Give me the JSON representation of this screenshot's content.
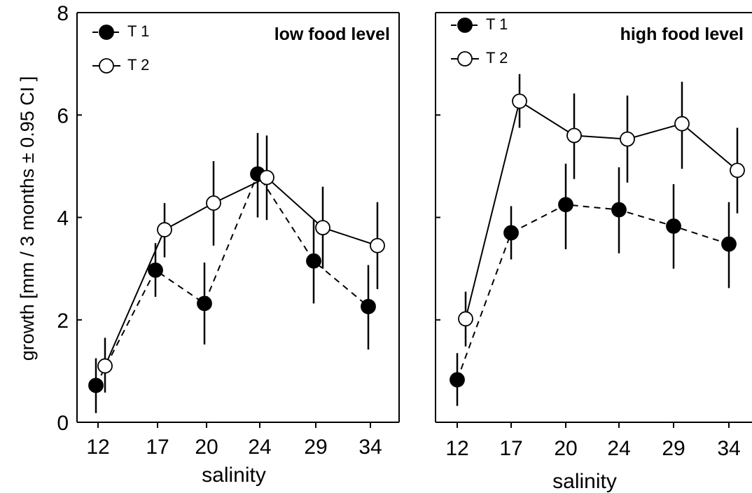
{
  "figure": {
    "ylabel": "growth [mm / 3 months ± 0.95 CI ]"
  },
  "chart_data": [
    {
      "type": "line",
      "title": "low food level",
      "xlabel": "salinity",
      "ylabel": "growth [mm / 3 months ± 0.95 CI ]",
      "categories": [
        "12",
        "17",
        "20",
        "24",
        "29",
        "34"
      ],
      "ylim": [
        0,
        8
      ],
      "yticks": [
        "0",
        "2",
        "4",
        "6",
        "8"
      ],
      "legend_position": "top-left",
      "series": [
        {
          "name": "T 1",
          "marker": "filled-circle",
          "line": "dashed",
          "values": [
            0.72,
            2.97,
            2.32,
            4.85,
            3.15,
            2.26
          ],
          "ci_low": [
            0.18,
            2.45,
            1.52,
            4.0,
            2.32,
            1.42
          ],
          "ci_high": [
            1.25,
            3.5,
            3.12,
            5.65,
            3.95,
            3.07
          ]
        },
        {
          "name": "T 2",
          "marker": "open-circle",
          "line": "solid",
          "values": [
            1.1,
            3.76,
            4.28,
            4.78,
            3.8,
            3.45
          ],
          "ci_low": [
            0.58,
            3.22,
            3.45,
            3.95,
            3.0,
            2.6
          ],
          "ci_high": [
            1.65,
            4.28,
            5.1,
            5.6,
            4.6,
            4.3
          ]
        }
      ]
    },
    {
      "type": "line",
      "title": "high food level",
      "xlabel": "salinity",
      "ylabel": "",
      "categories": [
        "12",
        "17",
        "20",
        "24",
        "29",
        "34"
      ],
      "ylim": [
        0,
        8
      ],
      "yticks": [],
      "legend_position": "top-left",
      "series": [
        {
          "name": "T 1",
          "marker": "filled-circle",
          "line": "dashed",
          "values": [
            0.83,
            3.7,
            4.25,
            4.15,
            3.83,
            3.48
          ],
          "ci_low": [
            0.32,
            3.18,
            3.38,
            3.3,
            3.0,
            2.62
          ],
          "ci_high": [
            1.35,
            4.22,
            5.05,
            4.98,
            4.65,
            4.3
          ]
        },
        {
          "name": "T 2",
          "marker": "open-circle",
          "line": "solid",
          "values": [
            2.02,
            6.27,
            5.6,
            5.53,
            5.83,
            4.92
          ],
          "ci_low": [
            1.48,
            5.75,
            4.75,
            4.68,
            4.95,
            4.08
          ],
          "ci_high": [
            2.55,
            6.8,
            6.42,
            6.38,
            6.65,
            5.75
          ]
        }
      ]
    }
  ]
}
